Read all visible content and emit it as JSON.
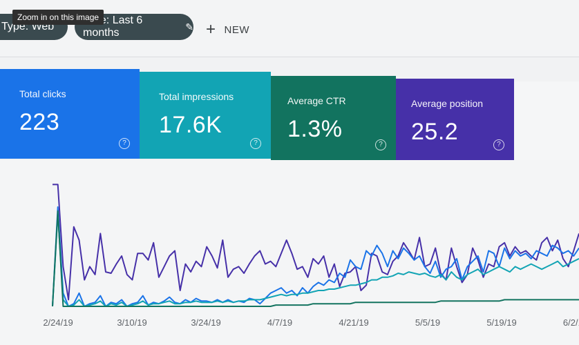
{
  "tooltip": "Zoom in on this image",
  "filters": {
    "type_chip": "Type: Web",
    "date_chip": "Date: Last 6 months",
    "new_label": "NEW"
  },
  "metrics": [
    {
      "label": "Total clicks",
      "value": "223",
      "color": "#1a73e8"
    },
    {
      "label": "Total impressions",
      "value": "17.6K",
      "color": "#12a4b4"
    },
    {
      "label": "Average CTR",
      "value": "1.3%",
      "color": "#12735f"
    },
    {
      "label": "Average position",
      "value": "25.2",
      "color": "#4630a8"
    }
  ],
  "chart_data": {
    "type": "line",
    "x_tick_labels": [
      "2/24/19",
      "3/10/19",
      "3/24/19",
      "4/7/19",
      "4/21/19",
      "5/5/19",
      "5/19/19",
      "6/2/19"
    ],
    "series": [
      {
        "color": "#4630a8",
        "values": [
          0.92,
          0.92,
          0.3,
          0.05,
          0.6,
          0.5,
          0.2,
          0.3,
          0.24,
          0.55,
          0.26,
          0.25,
          0.32,
          0.38,
          0.24,
          0.2,
          0.4,
          0.4,
          0.35,
          0.48,
          0.22,
          0.3,
          0.38,
          0.42,
          0.12,
          0.32,
          0.26,
          0.34,
          0.3,
          0.45,
          0.38,
          0.29,
          0.5,
          0.22,
          0.28,
          0.3,
          0.25,
          0.32,
          0.38,
          0.42,
          0.32,
          0.34,
          0.3,
          0.4,
          0.5,
          0.4,
          0.28,
          0.3,
          0.22,
          0.36,
          0.32,
          0.38,
          0.22,
          0.32,
          0.15,
          0.25,
          0.26,
          0.3,
          0.12,
          0.16,
          0.4,
          0.38,
          0.26,
          0.24,
          0.34,
          0.38,
          0.48,
          0.42,
          0.35,
          0.52,
          0.3,
          0.32,
          0.44,
          0.25,
          0.2,
          0.44,
          0.3,
          0.18,
          0.24,
          0.44,
          0.35,
          0.22,
          0.32,
          0.3,
          0.45,
          0.48,
          0.38,
          0.45,
          0.4,
          0.42,
          0.38,
          0.35,
          0.48,
          0.52,
          0.42,
          0.5,
          0.36,
          0.3,
          0.42,
          0.55
        ]
      },
      {
        "color": "#1a73e8",
        "values": [
          0.0,
          0.75,
          0.1,
          0.0,
          0.02,
          0.1,
          0.0,
          0.02,
          0.03,
          0.08,
          0.0,
          0.03,
          0.02,
          0.05,
          0.0,
          0.02,
          0.03,
          0.08,
          0.01,
          0.03,
          0.02,
          0.04,
          0.07,
          0.03,
          0.02,
          0.05,
          0.03,
          0.06,
          0.04,
          0.04,
          0.03,
          0.05,
          0.03,
          0.05,
          0.03,
          0.04,
          0.03,
          0.06,
          0.05,
          0.02,
          0.06,
          0.1,
          0.12,
          0.14,
          0.1,
          0.12,
          0.08,
          0.14,
          0.1,
          0.15,
          0.18,
          0.16,
          0.2,
          0.18,
          0.25,
          0.22,
          0.35,
          0.3,
          0.28,
          0.42,
          0.38,
          0.46,
          0.4,
          0.3,
          0.42,
          0.36,
          0.44,
          0.4,
          0.35,
          0.38,
          0.3,
          0.25,
          0.34,
          0.22,
          0.28,
          0.3,
          0.36,
          0.2,
          0.3,
          0.34,
          0.38,
          0.26,
          0.42,
          0.4,
          0.3,
          0.44,
          0.36,
          0.42,
          0.38,
          0.4,
          0.36,
          0.42,
          0.4,
          0.38,
          0.46,
          0.44,
          0.4,
          0.42,
          0.38,
          0.44
        ]
      },
      {
        "color": "#12a4b4",
        "values": [
          0.0,
          0.7,
          0.05,
          0.0,
          0.01,
          0.05,
          0.0,
          0.01,
          0.02,
          0.04,
          0.0,
          0.02,
          0.01,
          0.03,
          0.0,
          0.01,
          0.02,
          0.04,
          0.01,
          0.02,
          0.02,
          0.03,
          0.04,
          0.02,
          0.02,
          0.03,
          0.03,
          0.04,
          0.03,
          0.03,
          0.03,
          0.04,
          0.03,
          0.04,
          0.03,
          0.04,
          0.04,
          0.05,
          0.05,
          0.05,
          0.06,
          0.07,
          0.08,
          0.09,
          0.08,
          0.09,
          0.09,
          0.1,
          0.1,
          0.11,
          0.12,
          0.12,
          0.13,
          0.13,
          0.14,
          0.15,
          0.16,
          0.16,
          0.17,
          0.18,
          0.2,
          0.2,
          0.22,
          0.22,
          0.23,
          0.25,
          0.24,
          0.26,
          0.25,
          0.24,
          0.25,
          0.23,
          0.22,
          0.24,
          0.2,
          0.26,
          0.22,
          0.2,
          0.24,
          0.26,
          0.28,
          0.24,
          0.26,
          0.28,
          0.3,
          0.28,
          0.26,
          0.3,
          0.28,
          0.3,
          0.32,
          0.3,
          0.28,
          0.3,
          0.32,
          0.34,
          0.3,
          0.32,
          0.34,
          0.36
        ]
      },
      {
        "color": "#12735f",
        "values": [
          0.0,
          0.72,
          0.0,
          0.0,
          0.0,
          0.0,
          0.0,
          0.0,
          0.0,
          0.0,
          0.0,
          0.0,
          0.0,
          0.0,
          0.0,
          0.0,
          0.0,
          0.0,
          0.0,
          0.0,
          0.0,
          0.0,
          0.0,
          0.0,
          0.0,
          0.0,
          0.0,
          0.0,
          0.0,
          0.0,
          0.0,
          0.0,
          0.0,
          0.0,
          0.0,
          0.0,
          0.0,
          0.0,
          0.0,
          0.0,
          0.0,
          0.0,
          0.01,
          0.01,
          0.01,
          0.01,
          0.01,
          0.01,
          0.01,
          0.02,
          0.02,
          0.02,
          0.02,
          0.02,
          0.02,
          0.02,
          0.02,
          0.03,
          0.03,
          0.03,
          0.03,
          0.03,
          0.03,
          0.03,
          0.03,
          0.03,
          0.03,
          0.03,
          0.03,
          0.03,
          0.03,
          0.03,
          0.03,
          0.04,
          0.04,
          0.04,
          0.04,
          0.04,
          0.04,
          0.04,
          0.04,
          0.04,
          0.04,
          0.04,
          0.04,
          0.05,
          0.05,
          0.05,
          0.05,
          0.05,
          0.05,
          0.05,
          0.05,
          0.05,
          0.05,
          0.05,
          0.05,
          0.05,
          0.05,
          0.05
        ]
      }
    ]
  }
}
